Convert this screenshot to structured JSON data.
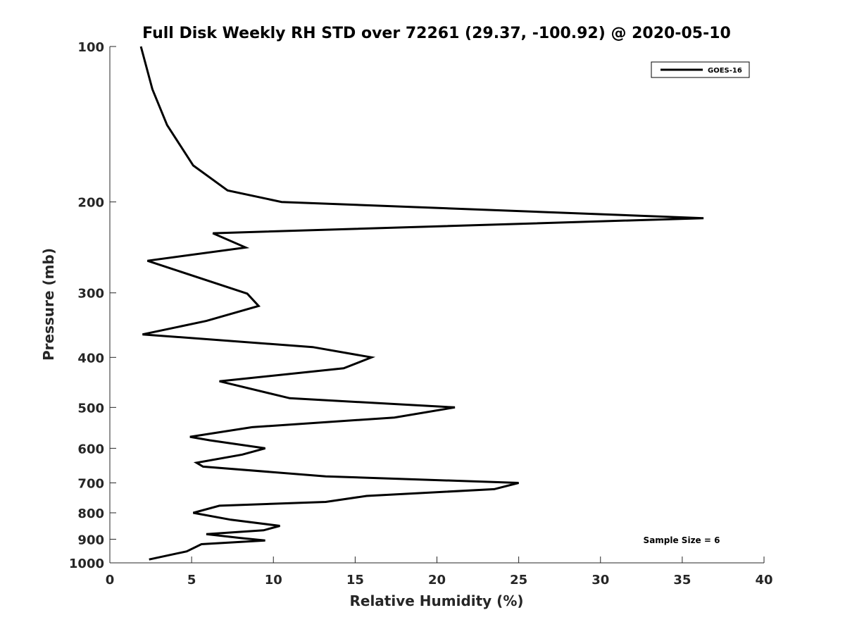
{
  "chart_data": {
    "type": "line",
    "title": "Full Disk Weekly RH STD over 72261 (29.37, -100.92) @ 2020-05-10",
    "xlabel": "Relative Humidity (%)",
    "ylabel": "Pressure (mb)",
    "xlim": [
      0,
      40
    ],
    "ylim": [
      100,
      1000
    ],
    "y_scale": "log",
    "y_reversed": true,
    "grid": false,
    "legend_position": "top-right",
    "xticks": [
      0,
      5,
      10,
      15,
      20,
      25,
      30,
      35,
      40
    ],
    "xtick_labels": [
      "0",
      "5",
      "10",
      "15",
      "20",
      "25",
      "30",
      "35",
      "40"
    ],
    "yticks": [
      100,
      200,
      300,
      400,
      500,
      600,
      700,
      800,
      900,
      1000
    ],
    "ytick_labels": [
      "100",
      "200",
      "300",
      "400",
      "500",
      "600",
      "700",
      "800",
      "900",
      "1000"
    ],
    "annotation": "Sample Size = 6",
    "series": [
      {
        "name": "GOES-16",
        "color": "#000000",
        "points": [
          [
            1.9,
            100
          ],
          [
            2.6,
            121
          ],
          [
            3.5,
            142
          ],
          [
            5.1,
            170
          ],
          [
            7.2,
            190
          ],
          [
            10.5,
            200
          ],
          [
            36.3,
            215
          ],
          [
            6.3,
            230
          ],
          [
            8.3,
            245
          ],
          [
            2.3,
            260
          ],
          [
            8.4,
            301
          ],
          [
            9.1,
            318
          ],
          [
            5.9,
            340
          ],
          [
            2.0,
            361
          ],
          [
            12.4,
            382
          ],
          [
            16.0,
            400
          ],
          [
            14.3,
            420
          ],
          [
            6.7,
            445
          ],
          [
            11.0,
            480
          ],
          [
            21.1,
            500
          ],
          [
            17.4,
            523
          ],
          [
            8.7,
            546
          ],
          [
            4.9,
            570
          ],
          [
            6.1,
            579
          ],
          [
            9.5,
            600
          ],
          [
            8.1,
            617
          ],
          [
            5.3,
            640
          ],
          [
            5.7,
            651
          ],
          [
            13.2,
            680
          ],
          [
            25.0,
            700
          ],
          [
            23.5,
            720
          ],
          [
            15.7,
            742
          ],
          [
            13.2,
            762
          ],
          [
            6.7,
            775
          ],
          [
            5.1,
            800
          ],
          [
            7.4,
            825
          ],
          [
            10.4,
            848
          ],
          [
            9.4,
            865
          ],
          [
            5.9,
            880
          ],
          [
            8.0,
            895
          ],
          [
            9.5,
            905
          ],
          [
            5.6,
            920
          ],
          [
            4.7,
            950
          ],
          [
            2.4,
            985
          ]
        ]
      }
    ]
  }
}
